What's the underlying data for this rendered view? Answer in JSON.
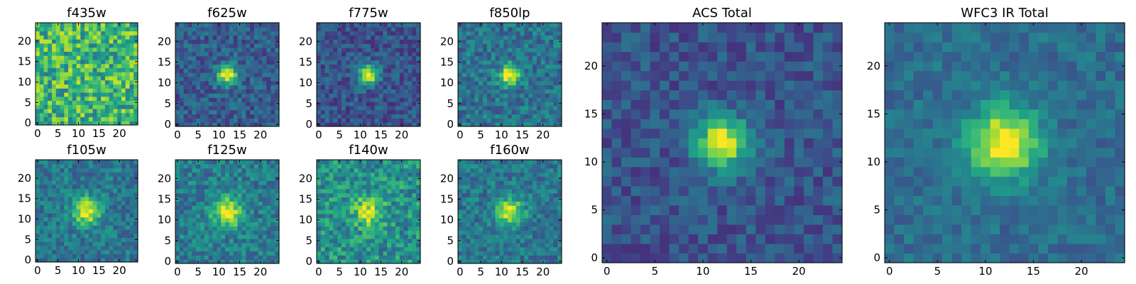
{
  "figure": {
    "colormap": "viridis",
    "colormap_stops": [
      "#440154",
      "#482878",
      "#3e4989",
      "#31688e",
      "#26828e",
      "#1f9e89",
      "#35b779",
      "#6ece58",
      "#b5de2b",
      "#fde725"
    ]
  },
  "chart_data": [
    {
      "type": "heatmap",
      "title": "f435w",
      "grid_size": 25,
      "xlim": [
        0,
        24
      ],
      "ylim": [
        0,
        24
      ],
      "xticks": [
        0,
        5,
        10,
        15,
        20
      ],
      "yticks": [
        0,
        5,
        10,
        15,
        20
      ],
      "center": [
        12,
        12
      ],
      "peak": 0.62,
      "sigma": 0,
      "background": 0.66,
      "noise": 0.26,
      "seed": 11
    },
    {
      "type": "heatmap",
      "title": "f625w",
      "grid_size": 25,
      "xlim": [
        0,
        24
      ],
      "ylim": [
        0,
        24
      ],
      "xticks": [
        0,
        5,
        10,
        15,
        20
      ],
      "yticks": [
        0,
        5,
        10,
        15,
        20
      ],
      "center": [
        12,
        12
      ],
      "peak": 0.72,
      "sigma": 1.7,
      "background": 0.3,
      "noise": 0.15,
      "seed": 23
    },
    {
      "type": "heatmap",
      "title": "f775w",
      "grid_size": 25,
      "xlim": [
        0,
        24
      ],
      "ylim": [
        0,
        24
      ],
      "xticks": [
        0,
        5,
        10,
        15,
        20
      ],
      "yticks": [
        0,
        5,
        10,
        15,
        20
      ],
      "center": [
        12,
        12
      ],
      "peak": 0.74,
      "sigma": 1.7,
      "background": 0.26,
      "noise": 0.14,
      "seed": 37
    },
    {
      "type": "heatmap",
      "title": "f850lp",
      "grid_size": 25,
      "xlim": [
        0,
        24
      ],
      "ylim": [
        0,
        24
      ],
      "xticks": [
        0,
        5,
        10,
        15,
        20
      ],
      "yticks": [
        0,
        5,
        10,
        15,
        20
      ],
      "center": [
        12,
        12
      ],
      "peak": 0.62,
      "sigma": 1.8,
      "background": 0.38,
      "noise": 0.16,
      "seed": 41
    },
    {
      "type": "heatmap",
      "title": "f105w",
      "grid_size": 25,
      "xlim": [
        0,
        24
      ],
      "ylim": [
        0,
        24
      ],
      "xticks": [
        0,
        5,
        10,
        15,
        20
      ],
      "yticks": [
        0,
        5,
        10,
        15,
        20
      ],
      "center": [
        12,
        12
      ],
      "peak": 0.6,
      "sigma": 2.3,
      "background": 0.4,
      "noise": 0.15,
      "seed": 53
    },
    {
      "type": "heatmap",
      "title": "f125w",
      "grid_size": 25,
      "xlim": [
        0,
        24
      ],
      "ylim": [
        0,
        24
      ],
      "xticks": [
        0,
        5,
        10,
        15,
        20
      ],
      "yticks": [
        0,
        5,
        10,
        15,
        20
      ],
      "center": [
        12,
        12
      ],
      "peak": 0.56,
      "sigma": 2.5,
      "background": 0.42,
      "noise": 0.16,
      "seed": 67
    },
    {
      "type": "heatmap",
      "title": "f140w",
      "grid_size": 25,
      "xlim": [
        0,
        24
      ],
      "ylim": [
        0,
        24
      ],
      "xticks": [
        0,
        5,
        10,
        15,
        20
      ],
      "yticks": [
        0,
        5,
        10,
        15,
        20
      ],
      "center": [
        12,
        12
      ],
      "peak": 0.42,
      "sigma": 2.5,
      "background": 0.5,
      "noise": 0.2,
      "seed": 71
    },
    {
      "type": "heatmap",
      "title": "f160w",
      "grid_size": 25,
      "xlim": [
        0,
        24
      ],
      "ylim": [
        0,
        24
      ],
      "xticks": [
        0,
        5,
        10,
        15,
        20
      ],
      "yticks": [
        0,
        5,
        10,
        15,
        20
      ],
      "center": [
        12,
        12
      ],
      "peak": 0.6,
      "sigma": 2.2,
      "background": 0.4,
      "noise": 0.15,
      "seed": 83
    },
    {
      "type": "heatmap",
      "title": "ACS Total",
      "grid_size": 25,
      "xlim": [
        0,
        24
      ],
      "ylim": [
        0,
        24
      ],
      "xticks": [
        0,
        5,
        10,
        15,
        20
      ],
      "yticks": [
        0,
        5,
        10,
        15,
        20
      ],
      "center": [
        12,
        12
      ],
      "peak": 0.75,
      "sigma": 1.9,
      "background": 0.26,
      "noise": 0.12,
      "seed": 97
    },
    {
      "type": "heatmap",
      "title": "WFC3 IR Total",
      "grid_size": 25,
      "xlim": [
        0,
        24
      ],
      "ylim": [
        0,
        24
      ],
      "xticks": [
        0,
        5,
        10,
        15,
        20
      ],
      "yticks": [
        0,
        5,
        10,
        15,
        20
      ],
      "center": [
        12,
        12
      ],
      "peak": 0.7,
      "sigma": 2.5,
      "background": 0.36,
      "noise": 0.1,
      "seed": 101
    }
  ]
}
